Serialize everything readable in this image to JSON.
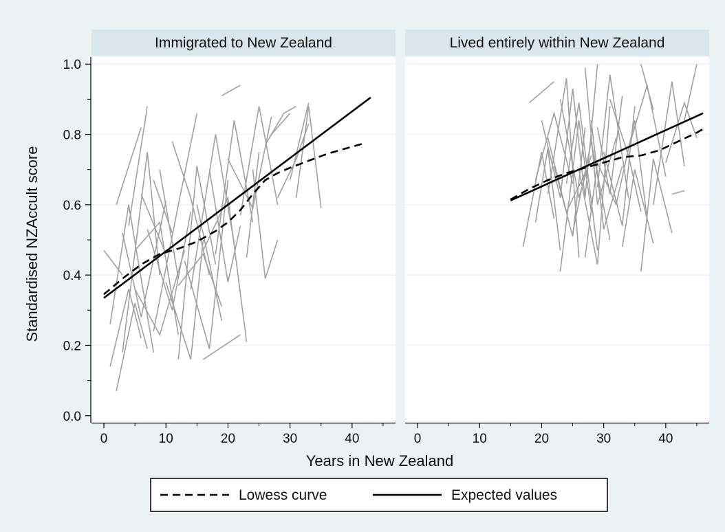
{
  "chart_data": {
    "type": "line",
    "ylabel": "Standardised NZAccult score",
    "xlabel": "Years in New Zealand",
    "xlim": [
      -2,
      47
    ],
    "ylim": [
      -0.02,
      1.02
    ],
    "x_ticks": [
      0,
      10,
      20,
      30,
      40
    ],
    "x_minor_ticks": [
      5,
      15,
      25,
      35,
      45
    ],
    "y_ticks": [
      0.0,
      0.2,
      0.4,
      0.6,
      0.8,
      1.0
    ],
    "y_tick_labels": [
      "0.0",
      "0.2",
      "0.4",
      "0.6",
      "0.8",
      "1.0"
    ],
    "grid": true,
    "colors": {
      "background": "#eaf2f3",
      "panel": "#ffffff",
      "header": "#d9e6eb",
      "trajectories": "#a0a0a0",
      "fitted": "#000000",
      "gridline": "#eaf2f3"
    },
    "legend": {
      "position": "bottom",
      "entries": [
        {
          "label": "Lowess curve",
          "style": "dashed"
        },
        {
          "label": "Expected values",
          "style": "solid"
        }
      ]
    },
    "panels": [
      {
        "title": "Immigrated to New Zealand",
        "series": [
          {
            "name": "Lowess curve",
            "style": "dashed",
            "x": [
              0,
              3,
              6,
              9,
              12,
              15,
              18,
              20,
              22,
              24,
              26,
              28,
              30,
              33,
              36,
              39,
              42
            ],
            "y": [
              0.345,
              0.39,
              0.43,
              0.46,
              0.475,
              0.495,
              0.525,
              0.55,
              0.585,
              0.63,
              0.67,
              0.69,
              0.705,
              0.725,
              0.745,
              0.76,
              0.775
            ]
          },
          {
            "name": "Expected values",
            "style": "solid",
            "x": [
              0,
              43
            ],
            "y": [
              0.335,
              0.905
            ]
          }
        ],
        "trajectories": [
          [
            [
              0,
              0.47
            ],
            [
              3,
              0.4
            ]
          ],
          [
            [
              1,
              0.14
            ],
            [
              4,
              0.36
            ],
            [
              6,
              0.22
            ]
          ],
          [
            [
              2,
              0.07
            ],
            [
              5,
              0.32
            ],
            [
              7,
              0.19
            ]
          ],
          [
            [
              2,
              0.6
            ],
            [
              6,
              0.82
            ]
          ],
          [
            [
              3,
              0.18
            ],
            [
              7,
              0.75
            ],
            [
              9,
              0.4
            ]
          ],
          [
            [
              4,
              0.54
            ],
            [
              7,
              0.88
            ]
          ],
          [
            [
              5,
              0.47
            ],
            [
              9,
              0.55
            ],
            [
              12,
              0.23
            ]
          ],
          [
            [
              6,
              0.63
            ],
            [
              10,
              0.46
            ]
          ],
          [
            [
              7,
              0.53
            ],
            [
              11,
              0.3
            ],
            [
              14,
              0.58
            ]
          ],
          [
            [
              8,
              0.24
            ],
            [
              12,
              0.6
            ],
            [
              15,
              0.86
            ]
          ],
          [
            [
              9,
              0.7
            ],
            [
              12,
              0.39
            ]
          ],
          [
            [
              10,
              0.38
            ],
            [
              14,
              0.16
            ],
            [
              16,
              0.5
            ]
          ],
          [
            [
              11,
              0.78
            ],
            [
              14,
              0.62
            ],
            [
              17,
              0.4
            ]
          ],
          [
            [
              12,
              0.16
            ],
            [
              15,
              0.71
            ],
            [
              18,
              0.43
            ]
          ],
          [
            [
              13,
              0.44
            ],
            [
              17,
              0.19
            ],
            [
              20,
              0.67
            ]
          ],
          [
            [
              14,
              0.36
            ],
            [
              18,
              0.8
            ],
            [
              21,
              0.49
            ]
          ],
          [
            [
              15,
              0.6
            ],
            [
              19,
              0.27
            ]
          ],
          [
            [
              16,
              0.16
            ],
            [
              22,
              0.23
            ]
          ],
          [
            [
              16,
              0.47
            ],
            [
              20,
              0.62
            ],
            [
              23,
              0.21
            ]
          ],
          [
            [
              18,
              0.46
            ],
            [
              21,
              0.84
            ],
            [
              24,
              0.55
            ]
          ],
          [
            [
              19,
              0.91
            ],
            [
              22,
              0.94
            ]
          ],
          [
            [
              20,
              0.73
            ],
            [
              24,
              0.59
            ],
            [
              27,
              0.85
            ]
          ],
          [
            [
              22,
              0.57
            ],
            [
              25,
              0.88
            ],
            [
              28,
              0.6
            ]
          ],
          [
            [
              24,
              0.7
            ],
            [
              26,
              0.39
            ],
            [
              28,
              0.5
            ]
          ],
          [
            [
              26,
              0.77
            ],
            [
              29,
              0.86
            ],
            [
              31,
              0.88
            ]
          ],
          [
            [
              27,
              0.8
            ],
            [
              30,
              0.86
            ]
          ],
          [
            [
              28,
              0.62
            ],
            [
              31,
              0.73
            ],
            [
              33,
              0.83
            ]
          ],
          [
            [
              30,
              0.67
            ],
            [
              33,
              0.89
            ]
          ],
          [
            [
              31,
              0.62
            ],
            [
              33,
              0.88
            ],
            [
              35,
              0.59
            ]
          ],
          [
            [
              1,
              0.26
            ],
            [
              4,
              0.6
            ],
            [
              8,
              0.18
            ]
          ],
          [
            [
              3,
              0.52
            ],
            [
              6,
              0.28
            ],
            [
              10,
              0.61
            ]
          ],
          [
            [
              5,
              0.36
            ],
            [
              9,
              0.23
            ],
            [
              13,
              0.47
            ]
          ],
          [
            [
              8,
              0.67
            ],
            [
              11,
              0.52
            ]
          ],
          [
            [
              12,
              0.37
            ],
            [
              16,
              0.46
            ],
            [
              19,
              0.31
            ]
          ],
          [
            [
              17,
              0.7
            ],
            [
              20,
              0.38
            ],
            [
              22,
              0.54
            ]
          ],
          [
            [
              23,
              0.45
            ],
            [
              25,
              0.75
            ]
          ]
        ]
      },
      {
        "title": "Lived entirely within New Zealand",
        "series": [
          {
            "name": "Lowess curve",
            "style": "dashed",
            "x": [
              15,
              18,
              21,
              24,
              27,
              30,
              33,
              36,
              39,
              42,
              45,
              46
            ],
            "y": [
              0.615,
              0.645,
              0.67,
              0.69,
              0.705,
              0.72,
              0.735,
              0.74,
              0.755,
              0.78,
              0.805,
              0.815
            ]
          },
          {
            "name": "Expected values",
            "style": "solid",
            "x": [
              15,
              46
            ],
            "y": [
              0.612,
              0.86
            ]
          }
        ],
        "trajectories": [
          [
            [
              17,
              0.48
            ],
            [
              20,
              0.75
            ],
            [
              22,
              0.56
            ]
          ],
          [
            [
              18,
              0.89
            ],
            [
              22,
              0.95
            ]
          ],
          [
            [
              19,
              0.55
            ],
            [
              21,
              0.76
            ],
            [
              23,
              0.47
            ]
          ],
          [
            [
              20,
              0.84
            ],
            [
              23,
              0.62
            ],
            [
              25,
              0.93
            ]
          ],
          [
            [
              21,
              0.63
            ],
            [
              24,
              0.96
            ],
            [
              26,
              0.45
            ]
          ],
          [
            [
              22,
              0.71
            ],
            [
              25,
              0.51
            ],
            [
              27,
              0.82
            ]
          ],
          [
            [
              23,
              0.41
            ],
            [
              26,
              0.84
            ],
            [
              28,
              0.58
            ]
          ],
          [
            [
              24,
              0.66
            ],
            [
              26,
              0.89
            ],
            [
              29,
              0.47
            ]
          ],
          [
            [
              25,
              0.93
            ],
            [
              27,
              0.62
            ],
            [
              29,
              1.0
            ]
          ],
          [
            [
              25,
              0.52
            ],
            [
              28,
              0.78
            ],
            [
              31,
              0.5
            ]
          ],
          [
            [
              26,
              0.7
            ],
            [
              29,
              0.43
            ],
            [
              31,
              0.88
            ]
          ],
          [
            [
              27,
              0.99
            ],
            [
              29,
              0.6
            ],
            [
              32,
              0.79
            ]
          ],
          [
            [
              28,
              0.84
            ],
            [
              30,
              0.53
            ],
            [
              33,
              0.71
            ]
          ],
          [
            [
              29,
              0.65
            ],
            [
              31,
              0.97
            ],
            [
              34,
              0.62
            ]
          ],
          [
            [
              30,
              0.75
            ],
            [
              33,
              0.54
            ],
            [
              35,
              0.88
            ]
          ],
          [
            [
              31,
              0.9
            ],
            [
              34,
              0.74
            ],
            [
              36,
              0.58
            ]
          ],
          [
            [
              32,
              0.6
            ],
            [
              35,
              0.84
            ],
            [
              37,
              0.56
            ]
          ],
          [
            [
              34,
              0.76
            ],
            [
              37,
              0.94
            ],
            [
              40,
              0.68
            ]
          ],
          [
            [
              36,
              0.41
            ],
            [
              38,
              0.73
            ],
            [
              41,
              0.52
            ]
          ],
          [
            [
              36,
              1.0
            ],
            [
              38,
              0.87
            ]
          ],
          [
            [
              38,
              0.6
            ],
            [
              41,
              0.95
            ],
            [
              43,
              0.71
            ]
          ],
          [
            [
              40,
              0.72
            ],
            [
              43,
              0.89
            ],
            [
              45,
              0.79
            ]
          ],
          [
            [
              41,
              0.63
            ],
            [
              43,
              0.64
            ]
          ],
          [
            [
              43,
              0.84
            ],
            [
              45,
              1.0
            ]
          ],
          [
            [
              21,
              0.79
            ],
            [
              24,
              0.58
            ],
            [
              27,
              0.69
            ]
          ],
          [
            [
              23,
              0.9
            ],
            [
              26,
              0.62
            ],
            [
              28,
              0.74
            ]
          ],
          [
            [
              27,
              0.45
            ],
            [
              29,
              0.72
            ],
            [
              32,
              0.6
            ]
          ],
          [
            [
              29,
              0.82
            ],
            [
              31,
              0.63
            ],
            [
              33,
              0.91
            ]
          ],
          [
            [
              19,
              0.67
            ],
            [
              22,
              0.86
            ],
            [
              25,
              0.66
            ]
          ],
          [
            [
              33,
              0.48
            ],
            [
              35,
              0.7
            ],
            [
              38,
              0.49
            ]
          ]
        ]
      }
    ]
  }
}
